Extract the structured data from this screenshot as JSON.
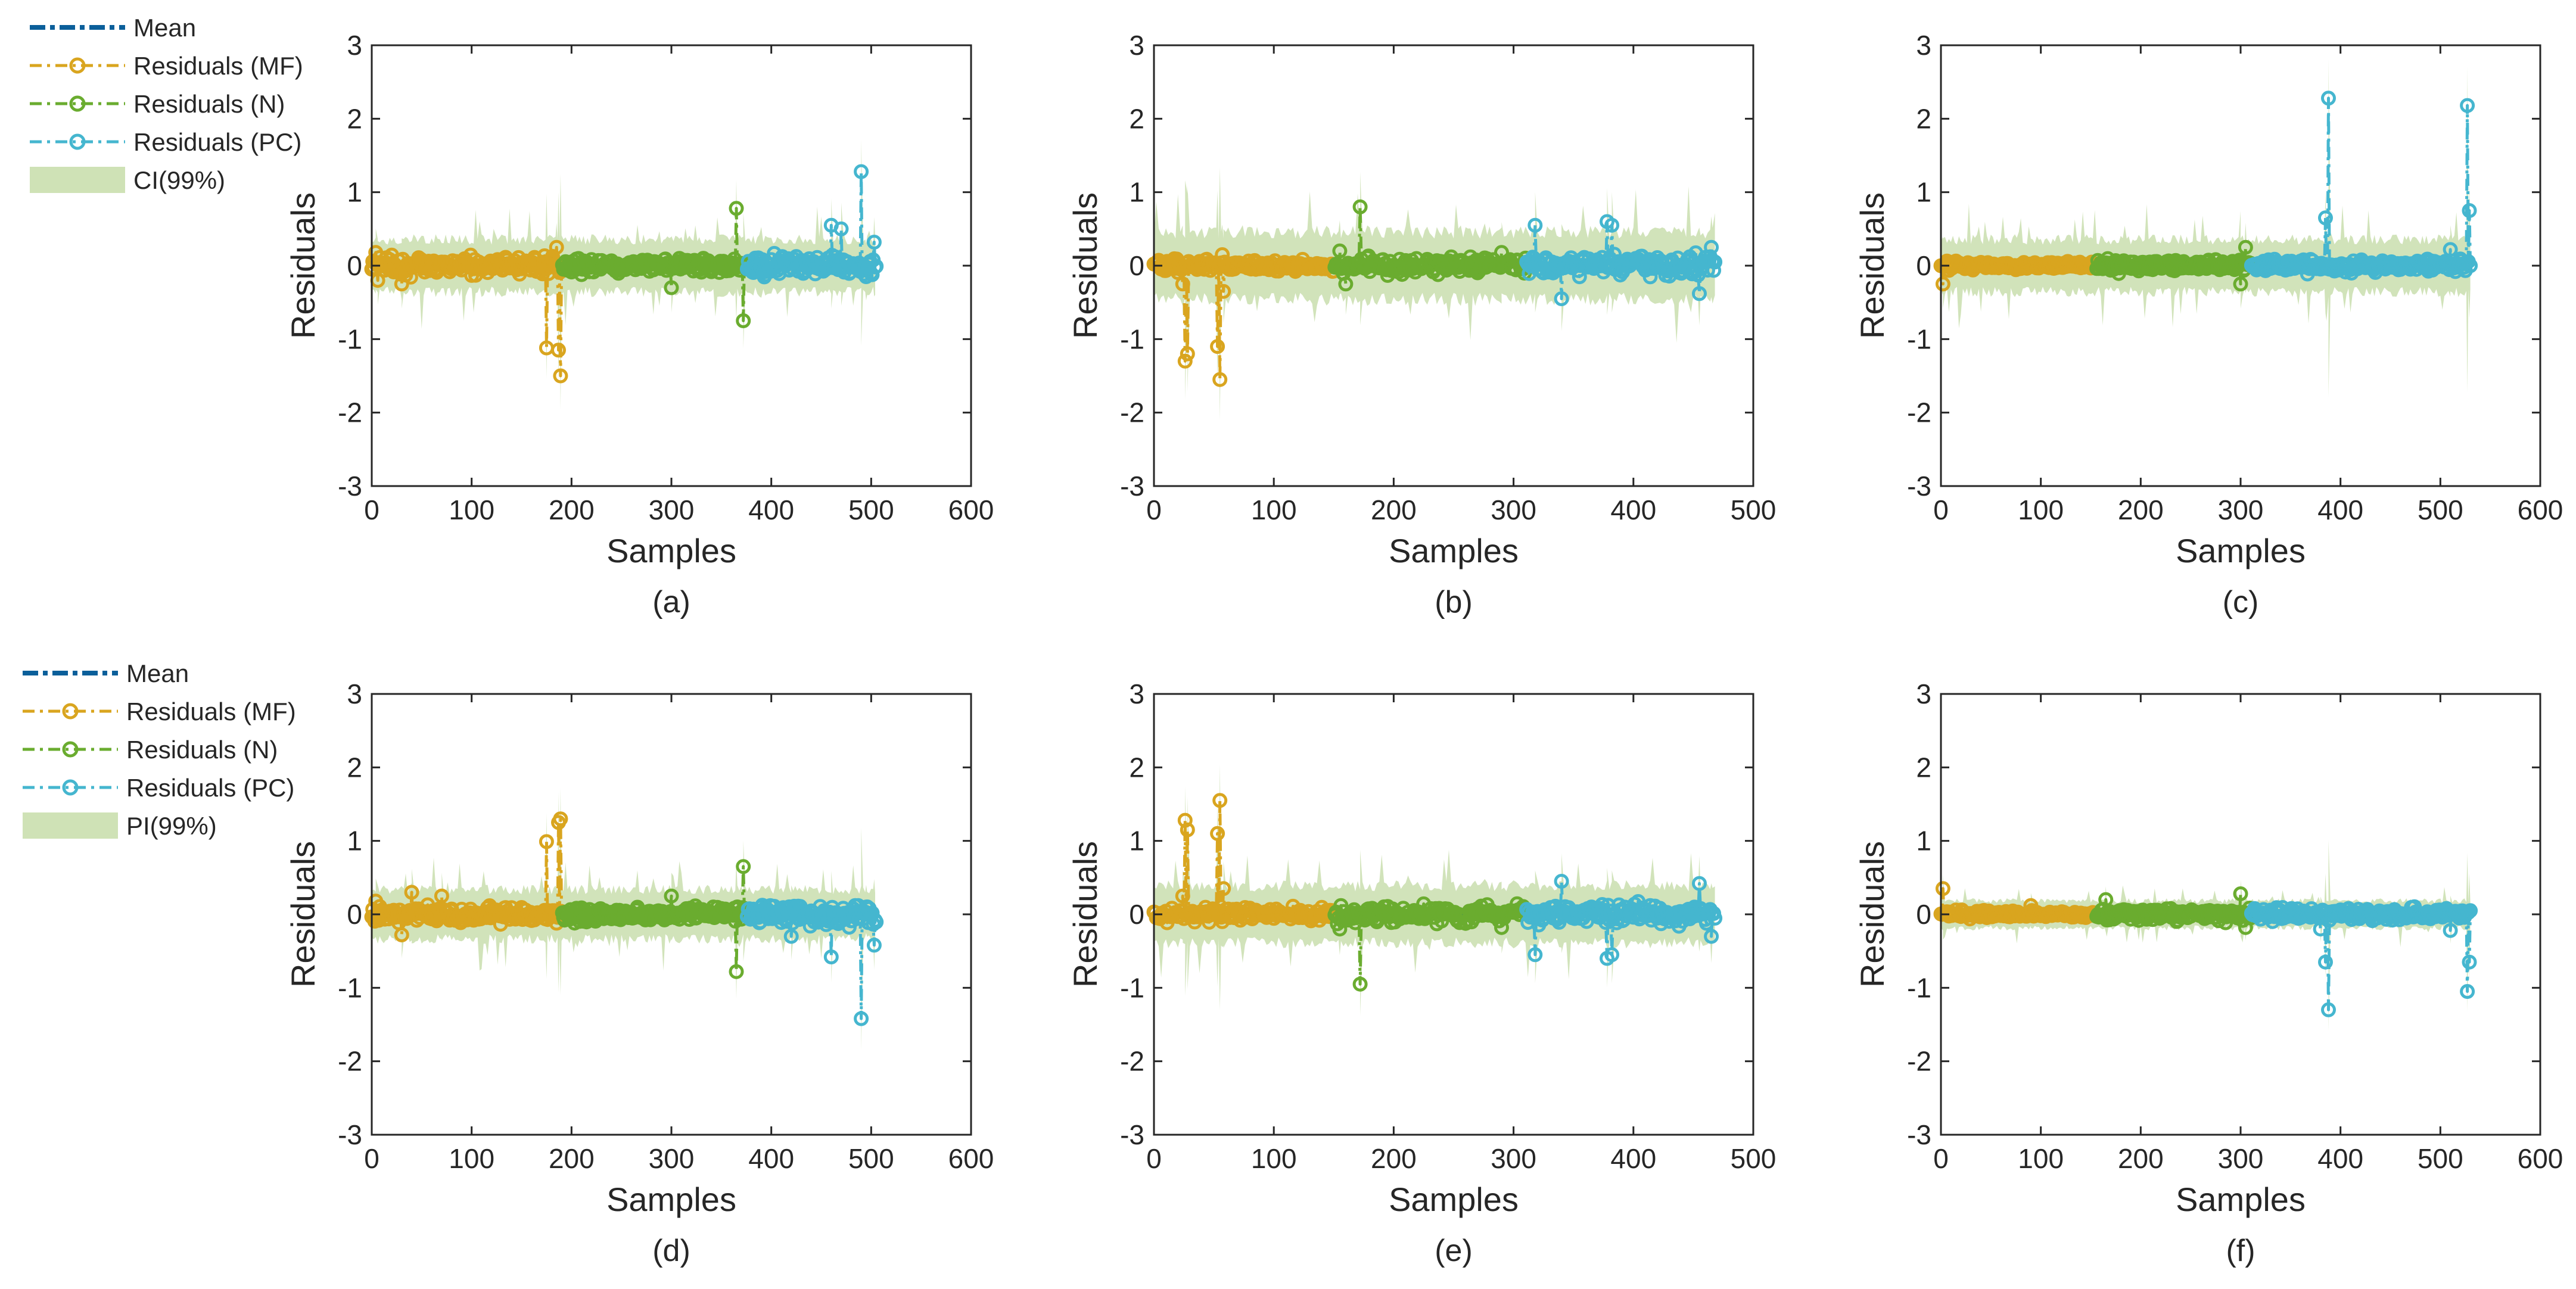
{
  "figure": {
    "colors": {
      "mean": "#0b5f9a",
      "mf": "#d9a51f",
      "n": "#6aac2f",
      "pc": "#45b6cf",
      "band": "#cfe2b6",
      "axis": "#262626"
    },
    "legend_top": {
      "entries": [
        {
          "label": "Mean",
          "kind": "mean"
        },
        {
          "label": "Residuals (MF)",
          "kind": "mf"
        },
        {
          "label": "Residuals (N)",
          "kind": "n"
        },
        {
          "label": "Residuals (PC)",
          "kind": "pc"
        },
        {
          "label": "CI(99%)",
          "kind": "band"
        }
      ]
    },
    "legend_bottom": {
      "entries": [
        {
          "label": "Mean",
          "kind": "mean"
        },
        {
          "label": "Residuals (MF)",
          "kind": "mf"
        },
        {
          "label": "Residuals (N)",
          "kind": "n"
        },
        {
          "label": "Residuals (PC)",
          "kind": "pc"
        },
        {
          "label": "PI(99%)",
          "kind": "band"
        }
      ]
    }
  },
  "chart_data": [
    {
      "id": "a",
      "caption": "(a)",
      "type": "line",
      "xlabel": "Samples",
      "ylabel": "Residuals",
      "xlim": [
        0,
        600
      ],
      "ylim": [
        -3,
        3
      ],
      "xticks": [
        "0",
        "100",
        "200",
        "300",
        "400",
        "500",
        "600"
      ],
      "yticks": [
        "-3",
        "-2",
        "-1",
        "0",
        "1",
        "2",
        "3"
      ],
      "band_name": "CI(99%)",
      "band_halfwidth": 0.35,
      "series": [
        {
          "name": "Residuals (MF)",
          "color": "mf",
          "x_range": [
            0,
            190
          ],
          "noise": 0.07,
          "spikes": [
            [
              4,
              0.18
            ],
            [
              6,
              -0.2
            ],
            [
              30,
              -0.25
            ],
            [
              175,
              -1.12
            ],
            [
              185,
              0.25
            ],
            [
              187,
              -1.15
            ],
            [
              189,
              -1.5
            ]
          ]
        },
        {
          "name": "Residuals (N)",
          "color": "n",
          "x_range": [
            191,
            375
          ],
          "noise": 0.06,
          "spikes": [
            [
              300,
              -0.3
            ],
            [
              365,
              0.78
            ],
            [
              372,
              -0.75
            ]
          ]
        },
        {
          "name": "Residuals (PC)",
          "color": "pc",
          "x_range": [
            376,
            505
          ],
          "noise": 0.08,
          "spikes": [
            [
              460,
              0.55
            ],
            [
              470,
              0.5
            ],
            [
              490,
              1.28
            ],
            [
              495,
              -0.15
            ],
            [
              503,
              0.32
            ]
          ]
        }
      ]
    },
    {
      "id": "b",
      "caption": "(b)",
      "type": "line",
      "xlabel": "Samples",
      "ylabel": "Residuals",
      "xlim": [
        0,
        500
      ],
      "ylim": [
        -3,
        3
      ],
      "xticks": [
        "0",
        "100",
        "200",
        "300",
        "400",
        "500"
      ],
      "yticks": [
        "-3",
        "-2",
        "-1",
        "0",
        "1",
        "2",
        "3"
      ],
      "band_name": "CI(99%)",
      "band_halfwidth": 0.45,
      "series": [
        {
          "name": "Residuals (MF)",
          "color": "mf",
          "x_range": [
            0,
            150
          ],
          "noise": 0.05,
          "spikes": [
            [
              24,
              -0.25
            ],
            [
              26,
              -1.3
            ],
            [
              28,
              -1.2
            ],
            [
              53,
              -1.1
            ],
            [
              55,
              -1.55
            ],
            [
              57,
              0.15
            ],
            [
              58,
              -0.35
            ]
          ]
        },
        {
          "name": "Residuals (N)",
          "color": "n",
          "x_range": [
            151,
            310
          ],
          "noise": 0.07,
          "spikes": [
            [
              155,
              0.2
            ],
            [
              160,
              -0.25
            ],
            [
              172,
              0.8
            ],
            [
              290,
              0.18
            ]
          ]
        },
        {
          "name": "Residuals (PC)",
          "color": "pc",
          "x_range": [
            311,
            468
          ],
          "noise": 0.09,
          "spikes": [
            [
              318,
              0.55
            ],
            [
              340,
              -0.45
            ],
            [
              378,
              0.6
            ],
            [
              382,
              0.55
            ],
            [
              455,
              -0.38
            ],
            [
              465,
              0.25
            ]
          ]
        }
      ]
    },
    {
      "id": "c",
      "caption": "(c)",
      "type": "line",
      "xlabel": "Samples",
      "ylabel": "Residuals",
      "xlim": [
        0,
        600
      ],
      "ylim": [
        -3,
        3
      ],
      "xticks": [
        "0",
        "100",
        "200",
        "300",
        "400",
        "500",
        "600"
      ],
      "yticks": [
        "-3",
        "-2",
        "-1",
        "0",
        "1",
        "2",
        "3"
      ],
      "band_name": "CI(99%)",
      "band_halfwidth": 0.35,
      "series": [
        {
          "name": "Residuals (MF)",
          "color": "mf",
          "x_range": [
            0,
            155
          ],
          "noise": 0.03,
          "spikes": [
            [
              2,
              -0.25
            ]
          ]
        },
        {
          "name": "Residuals (N)",
          "color": "n",
          "x_range": [
            156,
            310
          ],
          "noise": 0.05,
          "spikes": [
            [
              300,
              -0.25
            ],
            [
              305,
              0.25
            ]
          ]
        },
        {
          "name": "Residuals (PC)",
          "color": "pc",
          "x_range": [
            311,
            530
          ],
          "noise": 0.05,
          "spikes": [
            [
              385,
              0.65
            ],
            [
              388,
              2.28
            ],
            [
              510,
              0.22
            ],
            [
              527,
              2.18
            ],
            [
              529,
              0.75
            ],
            [
              530,
              0.0
            ]
          ]
        }
      ]
    },
    {
      "id": "d",
      "caption": "(d)",
      "type": "line",
      "xlabel": "Samples",
      "ylabel": "Residuals",
      "xlim": [
        0,
        600
      ],
      "ylim": [
        -3,
        3
      ],
      "xticks": [
        "0",
        "100",
        "200",
        "300",
        "400",
        "500",
        "600"
      ],
      "yticks": [
        "-3",
        "-2",
        "-1",
        "0",
        "1",
        "2",
        "3"
      ],
      "band_name": "PI(99%)",
      "band_halfwidth": 0.33,
      "series": [
        {
          "name": "Residuals (MF)",
          "color": "mf",
          "x_range": [
            0,
            190
          ],
          "noise": 0.07,
          "spikes": [
            [
              4,
              0.18
            ],
            [
              30,
              -0.28
            ],
            [
              40,
              0.3
            ],
            [
              70,
              0.25
            ],
            [
              175,
              0.99
            ],
            [
              187,
              1.25
            ],
            [
              189,
              1.3
            ]
          ]
        },
        {
          "name": "Residuals (N)",
          "color": "n",
          "x_range": [
            191,
            375
          ],
          "noise": 0.06,
          "spikes": [
            [
              300,
              0.25
            ],
            [
              365,
              -0.78
            ],
            [
              372,
              0.65
            ]
          ]
        },
        {
          "name": "Residuals (PC)",
          "color": "pc",
          "x_range": [
            376,
            505
          ],
          "noise": 0.08,
          "spikes": [
            [
              420,
              -0.3
            ],
            [
              460,
              -0.58
            ],
            [
              490,
              -1.42
            ],
            [
              495,
              0.1
            ],
            [
              503,
              -0.42
            ]
          ]
        }
      ]
    },
    {
      "id": "e",
      "caption": "(e)",
      "type": "line",
      "xlabel": "Samples",
      "ylabel": "Residuals",
      "xlim": [
        0,
        500
      ],
      "ylim": [
        -3,
        3
      ],
      "xticks": [
        "0",
        "100",
        "200",
        "300",
        "400",
        "500"
      ],
      "yticks": [
        "-3",
        "-2",
        "-1",
        "0",
        "1",
        "2",
        "3"
      ],
      "band_name": "PI(99%)",
      "band_halfwidth": 0.38,
      "series": [
        {
          "name": "Residuals (MF)",
          "color": "mf",
          "x_range": [
            0,
            150
          ],
          "noise": 0.05,
          "spikes": [
            [
              24,
              0.25
            ],
            [
              26,
              1.28
            ],
            [
              28,
              1.15
            ],
            [
              53,
              1.1
            ],
            [
              55,
              1.55
            ],
            [
              57,
              -0.1
            ],
            [
              58,
              0.35
            ]
          ]
        },
        {
          "name": "Residuals (N)",
          "color": "n",
          "x_range": [
            151,
            310
          ],
          "noise": 0.07,
          "spikes": [
            [
              155,
              -0.2
            ],
            [
              172,
              -0.95
            ],
            [
              290,
              -0.18
            ]
          ]
        },
        {
          "name": "Residuals (PC)",
          "color": "pc",
          "x_range": [
            311,
            468
          ],
          "noise": 0.09,
          "spikes": [
            [
              318,
              -0.55
            ],
            [
              340,
              0.45
            ],
            [
              378,
              -0.6
            ],
            [
              382,
              -0.55
            ],
            [
              455,
              0.42
            ],
            [
              465,
              -0.3
            ]
          ]
        }
      ]
    },
    {
      "id": "f",
      "caption": "(f)",
      "type": "line",
      "xlabel": "Samples",
      "ylabel": "Residuals",
      "xlim": [
        0,
        600
      ],
      "ylim": [
        -3,
        3
      ],
      "xticks": [
        "0",
        "100",
        "200",
        "300",
        "400",
        "500",
        "600"
      ],
      "yticks": [
        "-3",
        "-2",
        "-1",
        "0",
        "1",
        "2",
        "3"
      ],
      "band_name": "PI(99%)",
      "band_halfwidth": 0.18,
      "series": [
        {
          "name": "Residuals (MF)",
          "color": "mf",
          "x_range": [
            0,
            155
          ],
          "noise": 0.03,
          "spikes": [
            [
              2,
              0.35
            ],
            [
              90,
              0.12
            ]
          ]
        },
        {
          "name": "Residuals (N)",
          "color": "n",
          "x_range": [
            156,
            310
          ],
          "noise": 0.05,
          "spikes": [
            [
              165,
              0.2
            ],
            [
              300,
              0.28
            ],
            [
              305,
              -0.18
            ]
          ]
        },
        {
          "name": "Residuals (PC)",
          "color": "pc",
          "x_range": [
            311,
            530
          ],
          "noise": 0.05,
          "spikes": [
            [
              380,
              -0.2
            ],
            [
              385,
              -0.65
            ],
            [
              388,
              -1.3
            ],
            [
              510,
              -0.22
            ],
            [
              527,
              -1.05
            ],
            [
              529,
              -0.65
            ],
            [
              530,
              0.05
            ]
          ]
        }
      ]
    }
  ]
}
